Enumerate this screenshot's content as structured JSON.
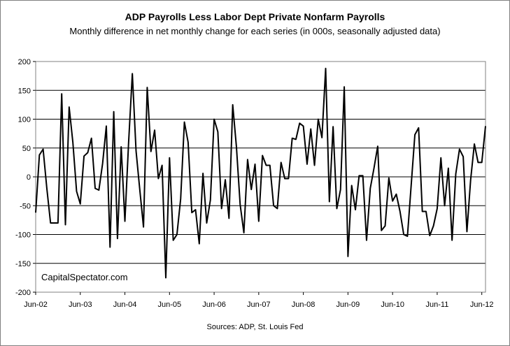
{
  "chart_data": {
    "type": "line",
    "title": "ADP Payrolls Less Labor Dept Private Nonfarm Payrolls",
    "subtitle": "Monthly difference in net monthly change for each series (in 000s, seasonally adjusted data)",
    "xlabel": "",
    "ylabel": "",
    "ylim": [
      -200,
      200
    ],
    "yticks": [
      200,
      150,
      100,
      50,
      0,
      -50,
      -100,
      -150,
      -200
    ],
    "xtick_labels": [
      "Jun-02",
      "Jun-03",
      "Jun-04",
      "Jun-05",
      "Jun-06",
      "Jun-07",
      "Jun-08",
      "Jun-09",
      "Jun-10",
      "Jun-11",
      "Jun-12"
    ],
    "grid": "horizontal",
    "line_color": "#000000",
    "watermark": "CapitalSpectator.com",
    "source": "Sources: ADP, St. Louis Fed",
    "start": "Jun-02",
    "series": [
      {
        "values": [
          -62,
          38,
          48,
          -20,
          -80,
          -80,
          -80,
          144,
          -83,
          121,
          60,
          -25,
          -47,
          36,
          42,
          67,
          -20,
          -23,
          23,
          88,
          -122,
          113,
          -107,
          52,
          -77,
          60,
          179,
          45,
          -22,
          -87,
          155,
          44,
          81,
          -3,
          20,
          -175,
          33,
          -110,
          -100,
          -38,
          95,
          60,
          -62,
          -57,
          -116,
          6,
          -80,
          -40,
          100,
          78,
          -55,
          -5,
          -72,
          125,
          52,
          -48,
          -97,
          30,
          -22,
          22,
          -77,
          37,
          20,
          20,
          -50,
          -55,
          25,
          -3,
          -3,
          67,
          65,
          93,
          88,
          22,
          83,
          20,
          100,
          68,
          188,
          -43,
          87,
          -55,
          -22,
          156,
          -138,
          -15,
          -57,
          2,
          2,
          -110,
          -20,
          15,
          53,
          -93,
          -85,
          -2,
          -42,
          -30,
          -60,
          -100,
          -103,
          -15,
          73,
          85,
          -60,
          -60,
          -102,
          -85,
          -55,
          33,
          -50,
          15,
          -110,
          5,
          48,
          35,
          -95,
          -5,
          57,
          25,
          25,
          88
        ]
      }
    ]
  }
}
